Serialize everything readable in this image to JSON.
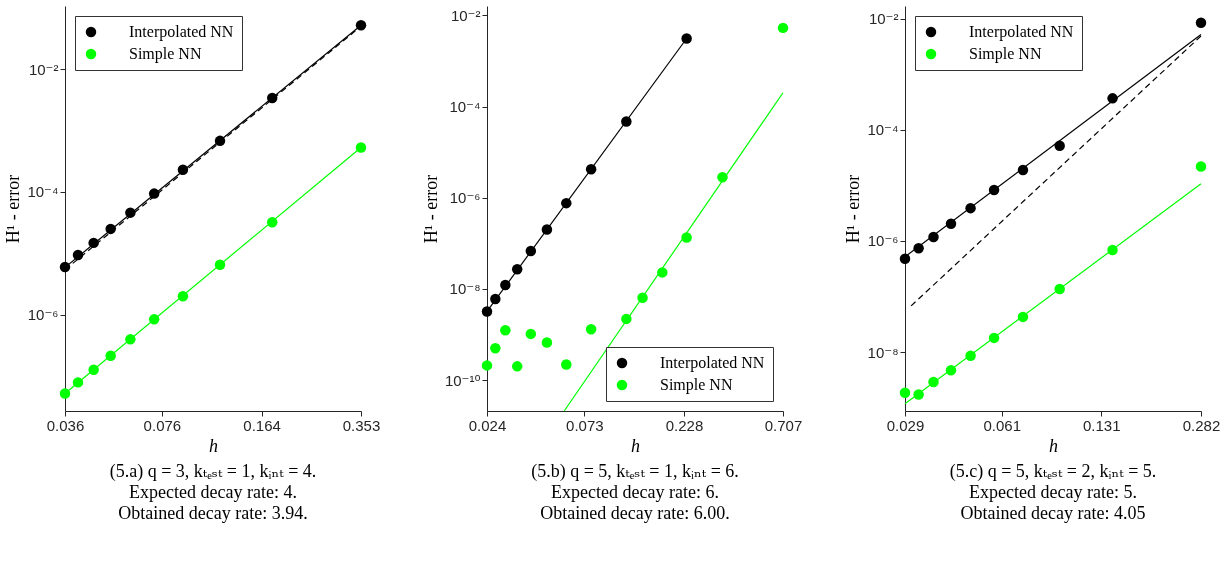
{
  "chart_data": [
    {
      "type": "scatter",
      "title": "(5.a) q = 3, kₜₑₛₜ = 1, kᵢₙₜ = 4.",
      "annotations": [
        "Expected decay rate: 4.",
        "Obtained decay rate: 3.94."
      ],
      "xlabel": "h",
      "ylabel": "H¹ - error",
      "log": "xy",
      "xlim": [
        0.036,
        0.353
      ],
      "ylim": [
        2.7e-08,
        0.107
      ],
      "xticks": [
        0.036,
        0.076,
        0.164,
        0.353
      ],
      "yticks": [
        {
          "value": 1e-06,
          "label": "10⁻⁶"
        },
        {
          "value": 0.0001,
          "label": "10⁻⁴"
        },
        {
          "value": 0.01,
          "label": "10⁻²"
        }
      ],
      "legend": "top left",
      "marker": "circle",
      "series": [
        {
          "name": "Interpolated NN",
          "color": "#000000",
          "x": [
            0.036,
            0.0398,
            0.0449,
            0.0512,
            0.0596,
            0.0716,
            0.0894,
            0.119,
            0.178,
            0.353
          ],
          "values": [
            6e-06,
            9.4e-06,
            1.48e-05,
            2.5e-05,
            4.6e-05,
            9.4e-05,
            0.00023,
            0.00068,
            0.0034,
            0.052
          ]
        },
        {
          "name": "Simple NN",
          "color": "#00ff00",
          "x": [
            0.036,
            0.0398,
            0.0449,
            0.0512,
            0.0596,
            0.0716,
            0.0894,
            0.119,
            0.178,
            0.353
          ],
          "values": [
            5.2e-08,
            7.9e-08,
            1.27e-07,
            2.15e-07,
            3.97e-07,
            8.4e-07,
            2e-06,
            6.5e-06,
            3.2e-05,
            0.00053
          ]
        },
        {
          "type": "line",
          "marker": "none",
          "color": "#000000",
          "x": [
            0.036,
            0.353
          ],
          "values": [
            5.9e-06,
            0.052
          ]
        },
        {
          "type": "line",
          "marker": "none",
          "line_style": "dashed",
          "color": "#000000",
          "x": [
            0.036,
            0.353
          ],
          "values": [
            5.4e-06,
            0.05
          ]
        },
        {
          "type": "line",
          "marker": "none",
          "color": "#00ff00",
          "x": [
            0.036,
            0.353
          ],
          "values": [
            5.2e-08,
            0.00053
          ]
        }
      ]
    },
    {
      "type": "scatter",
      "title": "(5.b) q = 5, kₜₑₛₜ = 1, kᵢₙₜ = 6.",
      "annotations": [
        "Expected decay rate: 6.",
        "Obtained decay rate: 6.00."
      ],
      "xlabel": "h",
      "ylabel": "H¹ - error",
      "log": "xy",
      "xlim": [
        0.024,
        0.707
      ],
      "ylim": [
        2.1e-11,
        0.016
      ],
      "xticks": [
        0.024,
        0.073,
        0.228,
        0.707
      ],
      "yticks": [
        {
          "value": 1e-10,
          "label": "10⁻¹⁰"
        },
        {
          "value": 1e-08,
          "label": "10⁻⁸"
        },
        {
          "value": 1e-06,
          "label": "10⁻⁶"
        },
        {
          "value": 0.0001,
          "label": "10⁻⁴"
        },
        {
          "value": 0.01,
          "label": "10⁻²"
        }
      ],
      "legend": "bottom right",
      "marker": "circle",
      "series": [
        {
          "name": "Interpolated NN",
          "color": "#000000",
          "x": [
            0.024,
            0.0264,
            0.0296,
            0.0339,
            0.0396,
            0.0476,
            0.0594,
            0.0789,
            0.118,
            0.235
          ],
          "values": [
            3.2e-09,
            6e-09,
            1.22e-08,
            2.7e-08,
            6.8e-08,
            2e-07,
            7.6e-07,
            4.2e-06,
            4.7e-05,
            0.0031
          ]
        },
        {
          "name": "Simple NN",
          "color": "#00ff00",
          "x": [
            0.024,
            0.0264,
            0.0296,
            0.0339,
            0.0396,
            0.0476,
            0.0594,
            0.0789,
            0.118,
            0.142,
            0.178,
            0.235,
            0.354,
            0.707
          ],
          "values": [
            2.1e-10,
            5e-10,
            1.24e-09,
            2e-10,
            1.03e-09,
            6.7e-10,
            2.2e-10,
            1.3e-09,
            2.2e-09,
            6.4e-09,
            2.3e-08,
            1.34e-07,
            2.8e-06,
            0.0053
          ]
        },
        {
          "type": "line",
          "marker": "none",
          "color": "#000000",
          "x": [
            0.024,
            0.235
          ],
          "values": [
            3.2e-09,
            0.0031
          ]
        },
        {
          "type": "line",
          "marker": "none",
          "color": "#00ff00",
          "x": [
            0.058,
            0.707
          ],
          "values": [
            2.1e-11,
            0.0002
          ]
        }
      ]
    },
    {
      "type": "scatter",
      "title": "(5.c) q = 5, kₜₑₛₜ = 2, kᵢₙₜ = 5.",
      "annotations": [
        "Expected decay rate: 5.",
        "Obtained decay rate: 4.05"
      ],
      "xlabel": "h",
      "ylabel": "H¹ - error",
      "log": "xy",
      "xlim": [
        0.029,
        0.282
      ],
      "ylim": [
        8.7e-10,
        0.017
      ],
      "xticks": [
        0.029,
        0.061,
        0.131,
        0.282
      ],
      "yticks": [
        {
          "value": 1e-08,
          "label": "10⁻⁸"
        },
        {
          "value": 1e-06,
          "label": "10⁻⁶"
        },
        {
          "value": 0.0001,
          "label": "10⁻⁴"
        },
        {
          "value": 0.01,
          "label": "10⁻²"
        }
      ],
      "legend": "top left",
      "marker": "circle",
      "series": [
        {
          "name": "Interpolated NN",
          "color": "#000000",
          "x": [
            0.029,
            0.0322,
            0.0361,
            0.0413,
            0.048,
            0.0575,
            0.0718,
            0.0952,
            0.1429,
            0.282
          ],
          "values": [
            4.8e-07,
            7.4e-07,
            1.18e-06,
            2.04e-06,
            3.9e-06,
            8.3e-06,
            1.9e-05,
            5.2e-05,
            0.00037,
            0.0085
          ]
        },
        {
          "name": "Simple NN",
          "color": "#00ff00",
          "x": [
            0.029,
            0.0322,
            0.0361,
            0.0413,
            0.048,
            0.0575,
            0.0718,
            0.0952,
            0.1429,
            0.282
          ],
          "values": [
            1.85e-09,
            1.73e-09,
            2.9e-09,
            4.7e-09,
            8.6e-09,
            1.8e-08,
            4.3e-08,
            1.37e-07,
            6.9e-07,
            2.2e-05
          ]
        },
        {
          "type": "line",
          "marker": "none",
          "color": "#000000",
          "x": [
            0.029,
            0.282
          ],
          "values": [
            5.2e-07,
            0.0052
          ]
        },
        {
          "type": "line",
          "marker": "none",
          "line_style": "dashed",
          "color": "#000000",
          "x": [
            0.0304,
            0.282
          ],
          "values": [
            6.8e-08,
            0.0049
          ]
        },
        {
          "type": "line",
          "marker": "none",
          "color": "#00ff00",
          "x": [
            0.029,
            0.282
          ],
          "values": [
            1.17e-09,
            1.07e-05
          ]
        }
      ]
    }
  ]
}
